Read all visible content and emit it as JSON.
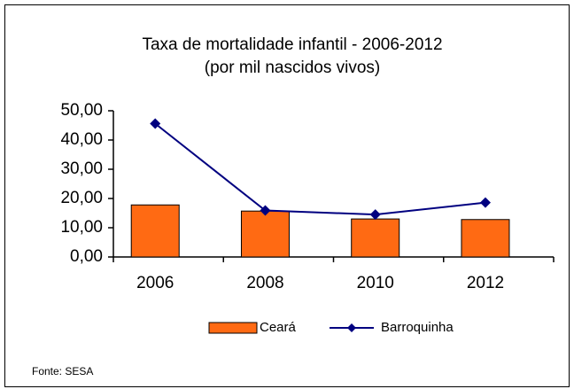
{
  "chart_data": {
    "type": "bar",
    "title": "Taxa de mortalidade infantil - 2006-2012",
    "subtitle": "(por mil nascidos vivos)",
    "source": "Fonte: SESA",
    "categories": [
      "2006",
      "2008",
      "2010",
      "2012"
    ],
    "series": [
      {
        "name": "Ceará",
        "type": "bar",
        "color": "#ff6a13",
        "values": [
          17.8,
          15.7,
          13.0,
          12.8
        ]
      },
      {
        "name": "Barroquinha",
        "type": "line",
        "color": "#000080",
        "values": [
          45.6,
          15.9,
          14.5,
          18.6
        ]
      }
    ],
    "ylim": [
      0,
      50
    ],
    "yticks": [
      {
        "value": 0,
        "label": "0,00"
      },
      {
        "value": 10,
        "label": "10,00"
      },
      {
        "value": 20,
        "label": "20,00"
      },
      {
        "value": 30,
        "label": "30,00"
      },
      {
        "value": 40,
        "label": "40,00"
      },
      {
        "value": 50,
        "label": "50,00"
      }
    ],
    "grid": false,
    "legend": "bottom"
  }
}
